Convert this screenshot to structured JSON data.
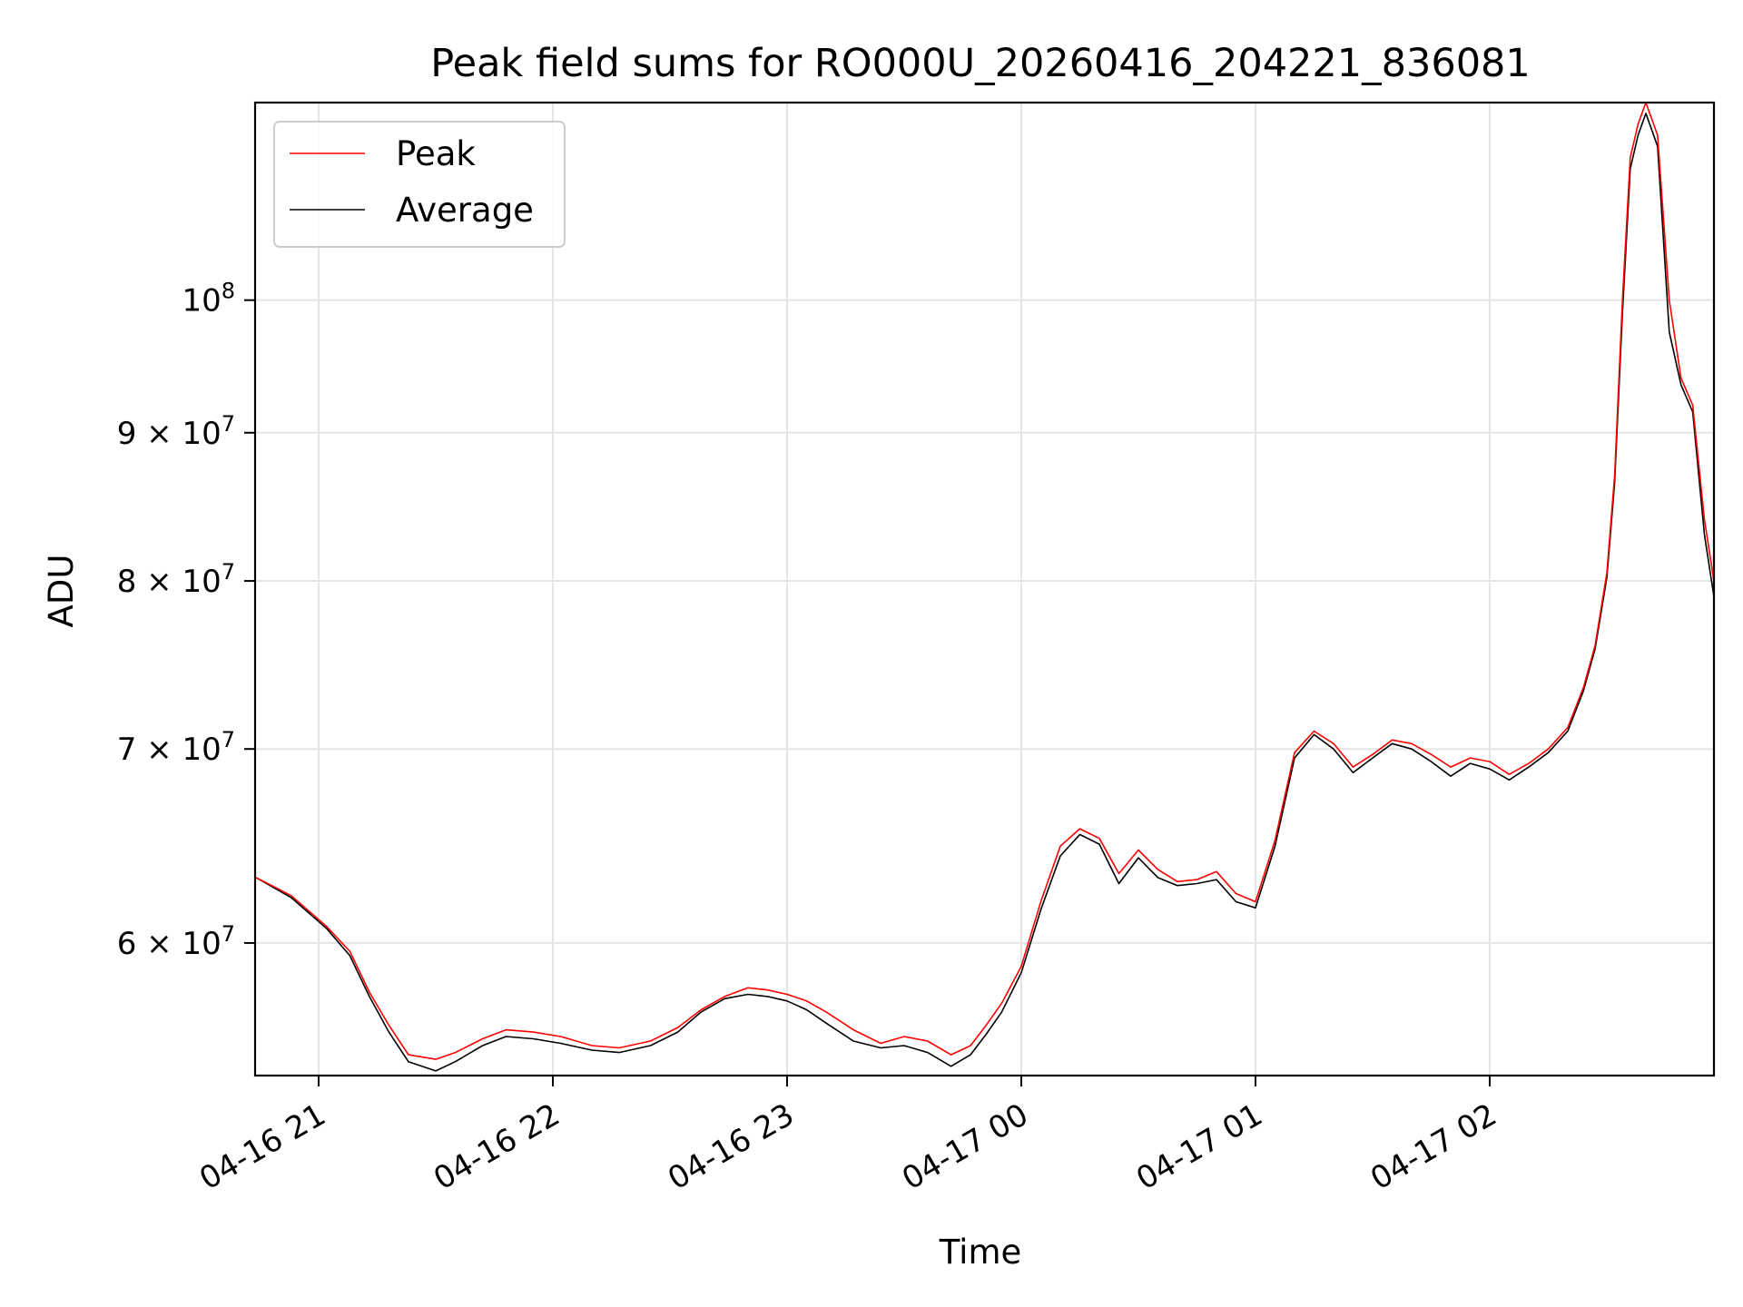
{
  "chart_data": {
    "type": "line",
    "title": "Peak field sums for RO000U_20260416_204221_836081",
    "xlabel": "Time",
    "ylabel": "ADU",
    "y_scale": "log",
    "ylim": [
      54000000,
      117000000
    ],
    "grid": true,
    "legend_position": "top-left",
    "x_ticks": [
      "04-16 21",
      "04-16 22",
      "04-16 23",
      "04-17 00",
      "04-17 01",
      "04-17 02"
    ],
    "y_ticks": [
      {
        "value": 60000000,
        "label_mantissa": "6",
        "label_base": "10",
        "label_exp": "7"
      },
      {
        "value": 70000000,
        "label_mantissa": "7",
        "label_base": "10",
        "label_exp": "7"
      },
      {
        "value": 80000000,
        "label_mantissa": "8",
        "label_base": "10",
        "label_exp": "7"
      },
      {
        "value": 90000000,
        "label_mantissa": "9",
        "label_base": "10",
        "label_exp": "7"
      },
      {
        "value": 100000000,
        "label_mantissa": "",
        "label_base": "10",
        "label_exp": "8"
      }
    ],
    "series": [
      {
        "name": "Peak",
        "color": "#ff0000",
        "x": [
          "2026-04-16 20:44",
          "2026-04-16 20:53",
          "2026-04-16 21:02",
          "2026-04-16 21:08",
          "2026-04-16 21:13",
          "2026-04-16 21:18",
          "2026-04-16 21:23",
          "2026-04-16 21:30",
          "2026-04-16 21:35",
          "2026-04-16 21:42",
          "2026-04-16 21:48",
          "2026-04-16 21:55",
          "2026-04-16 22:02",
          "2026-04-16 22:10",
          "2026-04-16 22:17",
          "2026-04-16 22:25",
          "2026-04-16 22:32",
          "2026-04-16 22:38",
          "2026-04-16 22:44",
          "2026-04-16 22:50",
          "2026-04-16 22:55",
          "2026-04-16 23:00",
          "2026-04-16 23:05",
          "2026-04-16 23:10",
          "2026-04-16 23:17",
          "2026-04-16 23:24",
          "2026-04-16 23:30",
          "2026-04-16 23:36",
          "2026-04-16 23:42",
          "2026-04-16 23:47",
          "2026-04-16 23:51",
          "2026-04-16 23:55",
          "2026-04-17 00:00",
          "2026-04-17 00:05",
          "2026-04-17 00:10",
          "2026-04-17 00:15",
          "2026-04-17 00:20",
          "2026-04-17 00:25",
          "2026-04-17 00:30",
          "2026-04-17 00:35",
          "2026-04-17 00:40",
          "2026-04-17 00:45",
          "2026-04-17 00:50",
          "2026-04-17 00:55",
          "2026-04-17 01:00",
          "2026-04-17 01:05",
          "2026-04-17 01:10",
          "2026-04-17 01:15",
          "2026-04-17 01:20",
          "2026-04-17 01:25",
          "2026-04-17 01:30",
          "2026-04-17 01:35",
          "2026-04-17 01:40",
          "2026-04-17 01:45",
          "2026-04-17 01:50",
          "2026-04-17 01:55",
          "2026-04-17 02:00",
          "2026-04-17 02:05",
          "2026-04-17 02:10",
          "2026-04-17 02:15",
          "2026-04-17 02:20",
          "2026-04-17 02:24",
          "2026-04-17 02:27",
          "2026-04-17 02:30",
          "2026-04-17 02:32",
          "2026-04-17 02:34",
          "2026-04-17 02:36",
          "2026-04-17 02:38",
          "2026-04-17 02:40",
          "2026-04-17 02:43",
          "2026-04-17 02:46",
          "2026-04-17 02:49",
          "2026-04-17 02:52",
          "2026-04-17 02:55",
          "2026-04-17 02:58",
          "2026-04-17 03:00"
        ],
        "values": [
          63200000,
          62300000,
          60800000,
          59600000,
          57700000,
          56200000,
          54900000,
          54700000,
          55000000,
          55600000,
          56000000,
          55900000,
          55700000,
          55300000,
          55200000,
          55500000,
          56100000,
          56900000,
          57500000,
          57900000,
          57800000,
          57600000,
          57300000,
          56800000,
          56000000,
          55400000,
          55700000,
          55500000,
          54900000,
          55300000,
          56200000,
          57200000,
          58900000,
          62000000,
          64800000,
          65700000,
          65200000,
          63400000,
          64600000,
          63600000,
          63000000,
          63100000,
          63500000,
          62400000,
          62000000,
          65100000,
          69800000,
          71000000,
          70300000,
          69000000,
          69700000,
          70500000,
          70300000,
          69700000,
          69000000,
          69500000,
          69300000,
          68600000,
          69200000,
          70000000,
          71200000,
          73500000,
          76000000,
          80500000,
          87000000,
          100000000,
          112000000,
          115000000,
          117000000,
          114000000,
          100000000,
          94000000,
          92000000,
          84000000,
          80000000,
          79500000
        ]
      },
      {
        "name": "Average",
        "color": "#000000",
        "x": [
          "2026-04-16 20:44",
          "2026-04-16 20:53",
          "2026-04-16 21:02",
          "2026-04-16 21:08",
          "2026-04-16 21:13",
          "2026-04-16 21:18",
          "2026-04-16 21:23",
          "2026-04-16 21:30",
          "2026-04-16 21:35",
          "2026-04-16 21:42",
          "2026-04-16 21:48",
          "2026-04-16 21:55",
          "2026-04-16 22:02",
          "2026-04-16 22:10",
          "2026-04-16 22:17",
          "2026-04-16 22:25",
          "2026-04-16 22:32",
          "2026-04-16 22:38",
          "2026-04-16 22:44",
          "2026-04-16 22:50",
          "2026-04-16 22:55",
          "2026-04-16 23:00",
          "2026-04-16 23:05",
          "2026-04-16 23:10",
          "2026-04-16 23:17",
          "2026-04-16 23:24",
          "2026-04-16 23:30",
          "2026-04-16 23:36",
          "2026-04-16 23:42",
          "2026-04-16 23:47",
          "2026-04-16 23:51",
          "2026-04-16 23:55",
          "2026-04-17 00:00",
          "2026-04-17 00:05",
          "2026-04-17 00:10",
          "2026-04-17 00:15",
          "2026-04-17 00:20",
          "2026-04-17 00:25",
          "2026-04-17 00:30",
          "2026-04-17 00:35",
          "2026-04-17 00:40",
          "2026-04-17 00:45",
          "2026-04-17 00:50",
          "2026-04-17 00:55",
          "2026-04-17 01:00",
          "2026-04-17 01:05",
          "2026-04-17 01:10",
          "2026-04-17 01:15",
          "2026-04-17 01:20",
          "2026-04-17 01:25",
          "2026-04-17 01:30",
          "2026-04-17 01:35",
          "2026-04-17 01:40",
          "2026-04-17 01:45",
          "2026-04-17 01:50",
          "2026-04-17 01:55",
          "2026-04-17 02:00",
          "2026-04-17 02:05",
          "2026-04-17 02:10",
          "2026-04-17 02:15",
          "2026-04-17 02:20",
          "2026-04-17 02:24",
          "2026-04-17 02:27",
          "2026-04-17 02:30",
          "2026-04-17 02:32",
          "2026-04-17 02:34",
          "2026-04-17 02:36",
          "2026-04-17 02:38",
          "2026-04-17 02:40",
          "2026-04-17 02:43",
          "2026-04-17 02:46",
          "2026-04-17 02:49",
          "2026-04-17 02:52",
          "2026-04-17 02:55",
          "2026-04-17 02:58",
          "2026-04-17 03:00"
        ],
        "values": [
          63200000,
          62200000,
          60700000,
          59400000,
          57500000,
          55900000,
          54600000,
          54200000,
          54600000,
          55300000,
          55700000,
          55600000,
          55400000,
          55100000,
          55000000,
          55300000,
          55900000,
          56800000,
          57400000,
          57600000,
          57500000,
          57300000,
          56900000,
          56300000,
          55500000,
          55200000,
          55300000,
          55000000,
          54400000,
          54900000,
          55800000,
          56800000,
          58600000,
          61600000,
          64300000,
          65400000,
          64900000,
          62900000,
          64200000,
          63200000,
          62800000,
          62900000,
          63100000,
          62000000,
          61700000,
          64800000,
          69500000,
          70800000,
          70000000,
          68700000,
          69500000,
          70300000,
          70000000,
          69300000,
          68500000,
          69200000,
          68900000,
          68300000,
          69000000,
          69800000,
          71000000,
          73300000,
          75800000,
          80200000,
          86500000,
          99000000,
          111000000,
          114000000,
          116000000,
          113000000,
          97500000,
          93500000,
          91500000,
          83000000,
          79000000,
          78500000
        ]
      }
    ]
  }
}
